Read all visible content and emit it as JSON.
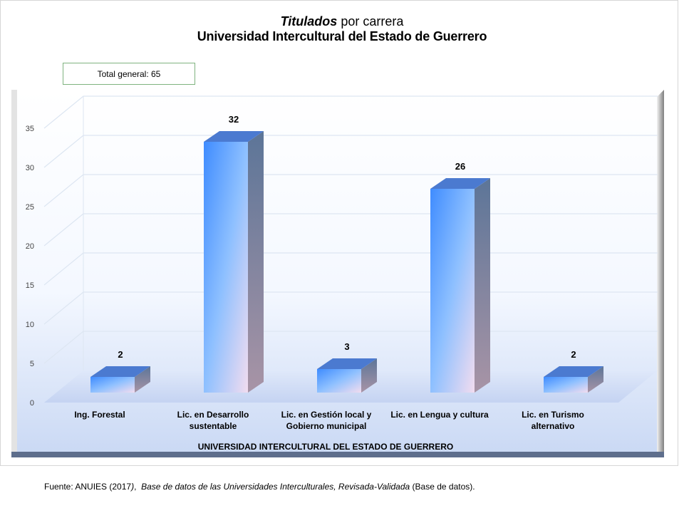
{
  "header": {
    "title_italic": "Titulados",
    "title_rest": " por carrera",
    "subtitle": "Universidad Intercultural del Estado de Guerrero"
  },
  "total_box": {
    "text": "Total general: 65"
  },
  "footer": {
    "source_prefix": "Fuente: ANUIES (2017",
    "source_mid": "), ",
    "source_italic": "Base de datos de las Universidades Interculturales, Revisada-Validada",
    "source_suffix": " (Base de datos)."
  },
  "chart_data": {
    "type": "bar",
    "title": "Titulados por carrera",
    "subtitle": "Universidad Intercultural del Estado de Guerrero",
    "categories": [
      [
        "Ing. Forestal"
      ],
      [
        "Lic. en Desarrollo",
        "sustentable"
      ],
      [
        "Lic. en Gestión local y",
        "Gobierno municipal"
      ],
      [
        "Lic. en Lengua y cultura"
      ],
      [
        "Lic. en Turismo",
        "alternativo"
      ]
    ],
    "values": [
      2,
      32,
      3,
      26,
      2
    ],
    "data_labels": [
      "2",
      "32",
      "3",
      "26",
      "2"
    ],
    "xlabel": "UNIVERSIDAD INTERCULTURAL DEL ESTADO DE GUERRERO",
    "ylabel": "",
    "ylim": [
      0,
      35
    ],
    "yticks": [
      "0",
      "5",
      "10",
      "15",
      "20",
      "25",
      "30",
      "35"
    ],
    "grid": true,
    "style": "3d-column",
    "colors": {
      "bar_front": "#5aa0ff",
      "bar_side": "#6d7f9c",
      "bar_top": "#4a78c8",
      "floor": "#c6d4f0"
    }
  }
}
